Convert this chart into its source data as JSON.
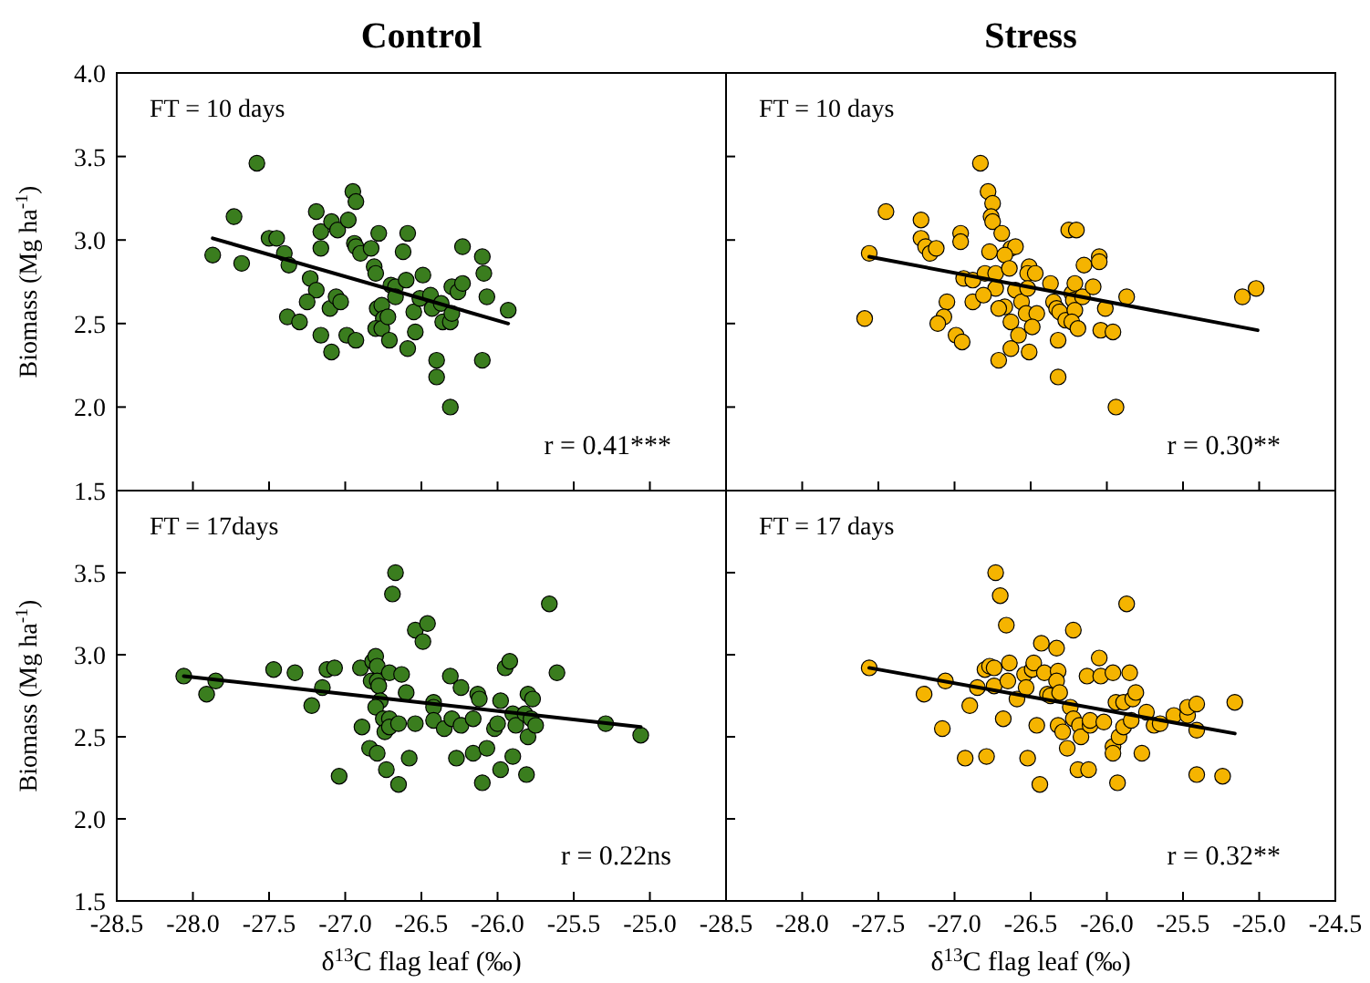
{
  "chart_data": [
    {
      "type": "scatter",
      "title": "Control",
      "ylabel": "Biomass (Mg ha$^{-1}$)",
      "annotations": [
        "FT = 10 days",
        "r = 0.41***"
      ],
      "xlim": [
        -28.5,
        -24.5
      ],
      "xticks": [
        -28.5,
        -28,
        -27.5,
        -27,
        -26.5,
        -26,
        -25.5,
        -25,
        -24.5
      ],
      "ylim": [
        1.5,
        4.0
      ],
      "yticks": [
        1.5,
        {
          "value": 2,
          "label": "2.0"
        },
        2.5,
        {
          "value": 3,
          "label": "3.0"
        },
        3.5,
        {
          "value": 4,
          "label": "4.0"
        }
      ],
      "tick_labels": "y",
      "grid": false,
      "series": [
        {
          "type": "scatter",
          "marker": "circle",
          "color": "#3a7d1e",
          "x": [
            -27.87,
            -27.73,
            -27.68,
            -27.58,
            -27.5,
            -27.45,
            -27.4,
            -27.37,
            -27.38,
            -27.3,
            -27.23,
            -27.19,
            -27.25,
            -27.16,
            -27.19,
            -27.16,
            -27.16,
            -27.09,
            -27.05,
            -27.1,
            -27.06,
            -27.03,
            -27.09,
            -26.99,
            -26.98,
            -26.95,
            -26.93,
            -26.94,
            -26.93,
            -26.9,
            -26.93,
            -26.83,
            -26.78,
            -26.81,
            -26.8,
            -26.79,
            -26.76,
            -26.75,
            -26.8,
            -26.76,
            -26.72,
            -26.71,
            -26.62,
            -26.59,
            -26.7,
            -26.67,
            -26.67,
            -26.6,
            -26.55,
            -26.54,
            -26.59,
            -26.51,
            -26.49,
            -26.44,
            -26.43,
            -26.37,
            -26.4,
            -26.4,
            -26.36,
            -26.31,
            -26.3,
            -26.31,
            -26.3,
            -26.26,
            -26.23,
            -26.23,
            -26.1,
            -26.09,
            -26.07,
            -26.1,
            -25.93
          ],
          "values": [
            2.91,
            3.14,
            2.86,
            3.46,
            3.01,
            3.01,
            2.92,
            2.85,
            2.54,
            2.51,
            2.77,
            2.7,
            2.63,
            2.43,
            3.17,
            3.05,
            2.95,
            3.11,
            3.06,
            2.59,
            2.66,
            2.63,
            2.33,
            2.43,
            3.12,
            3.29,
            3.23,
            2.98,
            2.96,
            2.92,
            2.4,
            2.95,
            3.04,
            2.84,
            2.8,
            2.59,
            2.61,
            2.53,
            2.47,
            2.47,
            2.54,
            2.4,
            2.93,
            3.04,
            2.73,
            2.72,
            2.66,
            2.76,
            2.57,
            2.45,
            2.35,
            2.65,
            2.79,
            2.67,
            2.59,
            2.62,
            2.28,
            2.18,
            2.51,
            2.51,
            2.56,
            2.0,
            2.72,
            2.69,
            2.74,
            2.96,
            2.9,
            2.8,
            2.66,
            2.28,
            2.58
          ]
        },
        {
          "type": "line",
          "marker": "none",
          "color": "#000000",
          "x": [
            -27.87,
            -25.93
          ],
          "values": [
            3.01,
            2.5
          ]
        }
      ]
    },
    {
      "type": "scatter",
      "title": "Stress",
      "annotations": [
        "FT = 10 days",
        "r = 0.30**"
      ],
      "xlim": [
        -28.5,
        -24.5
      ],
      "xticks": [
        -28.5,
        -28,
        -27.5,
        -27,
        -26.5,
        -26,
        -25.5,
        -25,
        -24.5
      ],
      "ylim": [
        1.5,
        4.0
      ],
      "yticks": [
        1.5,
        2,
        2.5,
        3,
        3.5,
        4
      ],
      "tick_labels": false,
      "grid": false,
      "series": [
        {
          "type": "scatter",
          "marker": "circle",
          "color": "#f5b400",
          "x": [
            -27.56,
            -27.59,
            -27.45,
            -27.22,
            -27.22,
            -27.19,
            -27.16,
            -27.12,
            -27.05,
            -27.07,
            -27.11,
            -26.99,
            -26.95,
            -26.96,
            -26.96,
            -26.94,
            -26.88,
            -26.88,
            -26.83,
            -26.78,
            -26.75,
            -26.76,
            -26.75,
            -26.69,
            -26.77,
            -26.8,
            -26.73,
            -26.73,
            -26.81,
            -26.67,
            -26.71,
            -26.71,
            -26.63,
            -26.6,
            -26.67,
            -26.64,
            -26.6,
            -26.56,
            -26.63,
            -26.58,
            -26.63,
            -26.51,
            -26.52,
            -26.47,
            -26.52,
            -26.53,
            -26.46,
            -26.49,
            -26.51,
            -26.37,
            -26.35,
            -26.33,
            -26.31,
            -26.27,
            -26.32,
            -26.32,
            -26.25,
            -26.2,
            -26.23,
            -26.21,
            -26.22,
            -26.16,
            -26.21,
            -26.23,
            -26.19,
            -26.15,
            -26.09,
            -26.05,
            -26.05,
            -26.01,
            -26.04,
            -25.96,
            -25.94,
            -25.87,
            -25.11,
            -25.02
          ],
          "values": [
            2.92,
            2.53,
            3.17,
            3.12,
            3.01,
            2.96,
            2.92,
            2.95,
            2.63,
            2.54,
            2.5,
            2.43,
            2.39,
            3.04,
            2.99,
            2.77,
            2.76,
            2.63,
            3.46,
            3.29,
            3.22,
            3.14,
            3.11,
            3.04,
            2.93,
            2.8,
            2.8,
            2.71,
            2.67,
            2.6,
            2.59,
            2.28,
            2.95,
            2.96,
            2.91,
            2.83,
            2.7,
            2.63,
            2.51,
            2.43,
            2.35,
            2.84,
            2.8,
            2.8,
            2.71,
            2.56,
            2.56,
            2.48,
            2.33,
            2.74,
            2.63,
            2.59,
            2.57,
            2.52,
            2.4,
            2.18,
            3.06,
            3.06,
            2.68,
            2.74,
            2.64,
            2.66,
            2.58,
            2.51,
            2.47,
            2.85,
            2.72,
            2.9,
            2.87,
            2.59,
            2.46,
            2.45,
            2.0,
            2.66,
            2.66,
            2.71
          ]
        },
        {
          "type": "line",
          "marker": "none",
          "color": "#000000",
          "x": [
            -27.56,
            -25.01
          ],
          "values": [
            2.9,
            2.46
          ]
        }
      ]
    },
    {
      "type": "scatter",
      "ylabel": "Biomass (Mg ha$^{-1}$)",
      "xlabel": "δ$^{13}$C flag leaf (‰)",
      "annotations": [
        "FT = 17days",
        "r = 0.22ns"
      ],
      "xlim": [
        -28.5,
        -24.5
      ],
      "xticks": [
        -28.5,
        {
          "value": -28,
          "label": "-28.0"
        },
        -27.5,
        {
          "value": -27,
          "label": "-27.0"
        },
        -26.5,
        {
          "value": -26,
          "label": "-26.0"
        },
        -25.5,
        {
          "value": -25,
          "label": "-25.0"
        },
        {
          "value": -24.5,
          "label": null
        }
      ],
      "ylim": [
        1.5,
        4.0
      ],
      "yticks": [
        1.5,
        {
          "value": 2,
          "label": "2.0"
        },
        2.5,
        {
          "value": 3,
          "label": "3.0"
        },
        3.5,
        {
          "value": 4,
          "label": null
        }
      ],
      "grid": false,
      "series": [
        {
          "type": "scatter",
          "marker": "circle",
          "color": "#3a7d1e",
          "x": [
            -28.06,
            -27.91,
            -27.85,
            -27.47,
            -27.33,
            -27.22,
            -27.15,
            -27.12,
            -27.07,
            -27.04,
            -26.9,
            -26.89,
            -26.84,
            -26.79,
            -26.82,
            -26.8,
            -26.79,
            -26.83,
            -26.79,
            -26.78,
            -26.77,
            -26.8,
            -26.75,
            -26.71,
            -26.74,
            -26.71,
            -26.73,
            -26.71,
            -26.67,
            -26.69,
            -26.65,
            -26.65,
            -26.63,
            -26.6,
            -26.54,
            -26.46,
            -26.49,
            -26.54,
            -26.58,
            -26.42,
            -26.42,
            -26.42,
            -26.35,
            -26.31,
            -26.3,
            -26.27,
            -26.24,
            -26.24,
            -26.16,
            -26.16,
            -26.13,
            -26.12,
            -26.1,
            -26.07,
            -26.02,
            -26.0,
            -25.98,
            -25.98,
            -25.95,
            -25.92,
            -25.9,
            -25.9,
            -25.88,
            -25.82,
            -25.8,
            -25.8,
            -25.78,
            -25.81,
            -25.77,
            -25.75,
            -25.66,
            -25.61,
            -25.29,
            -25.06
          ],
          "values": [
            2.87,
            2.76,
            2.84,
            2.91,
            2.89,
            2.69,
            2.8,
            2.91,
            2.92,
            2.26,
            2.92,
            2.56,
            2.43,
            2.4,
            2.96,
            2.99,
            2.93,
            2.84,
            2.84,
            2.81,
            2.72,
            2.68,
            2.61,
            2.61,
            2.53,
            2.56,
            2.3,
            2.89,
            3.5,
            3.37,
            2.58,
            2.21,
            2.88,
            2.77,
            3.15,
            3.19,
            3.08,
            2.58,
            2.37,
            2.71,
            2.68,
            2.6,
            2.55,
            2.87,
            2.61,
            2.37,
            2.8,
            2.57,
            2.4,
            2.61,
            2.76,
            2.73,
            2.22,
            2.43,
            2.55,
            2.58,
            2.72,
            2.3,
            2.92,
            2.96,
            2.64,
            2.38,
            2.57,
            2.64,
            2.76,
            2.5,
            2.61,
            2.27,
            2.73,
            2.57,
            3.31,
            2.89,
            2.58,
            2.51
          ]
        },
        {
          "type": "line",
          "marker": "none",
          "color": "#000000",
          "x": [
            -28.06,
            -25.06
          ],
          "values": [
            2.87,
            2.56
          ]
        }
      ]
    },
    {
      "type": "scatter",
      "xlabel": "δ$^{13}$C flag leaf (‰)",
      "annotations": [
        "FT = 17 days",
        "r = 0.32**"
      ],
      "xlim": [
        -28.5,
        -24.5
      ],
      "xticks": [
        -28.5,
        {
          "value": -28,
          "label": "-28.0"
        },
        -27.5,
        {
          "value": -27,
          "label": "-27.0"
        },
        -26.5,
        {
          "value": -26,
          "label": "-26.0"
        },
        -25.5,
        {
          "value": -25,
          "label": "-25.0"
        },
        -24.5
      ],
      "ylim": [
        1.5,
        4.0
      ],
      "yticks": [
        1.5,
        2,
        2.5,
        3,
        3.5,
        4
      ],
      "tick_labels": "x",
      "grid": false,
      "series": [
        {
          "type": "scatter",
          "marker": "circle",
          "color": "#f5b400",
          "x": [
            -27.56,
            -27.2,
            -27.08,
            -27.06,
            -26.93,
            -26.9,
            -26.85,
            -26.8,
            -26.77,
            -26.74,
            -26.79,
            -26.74,
            -26.73,
            -26.7,
            -26.68,
            -26.66,
            -26.65,
            -26.64,
            -26.59,
            -26.54,
            -26.53,
            -26.52,
            -26.49,
            -26.48,
            -26.46,
            -26.44,
            -26.43,
            -26.41,
            -26.39,
            -26.37,
            -26.33,
            -26.32,
            -26.33,
            -26.31,
            -26.32,
            -26.29,
            -26.26,
            -26.24,
            -26.22,
            -26.22,
            -26.19,
            -26.18,
            -26.17,
            -26.13,
            -26.12,
            -26.11,
            -26.11,
            -26.05,
            -26.04,
            -26.02,
            -25.96,
            -25.96,
            -25.96,
            -25.94,
            -25.93,
            -25.92,
            -25.89,
            -25.89,
            -25.87,
            -25.85,
            -25.84,
            -25.83,
            -25.81,
            -25.77,
            -25.74,
            -25.69,
            -25.65,
            -25.56,
            -25.47,
            -25.47,
            -25.41,
            -25.41,
            -25.41,
            -25.24,
            -25.16
          ],
          "values": [
            2.92,
            2.76,
            2.55,
            2.84,
            2.37,
            2.69,
            2.8,
            2.91,
            2.93,
            2.92,
            2.38,
            2.81,
            3.5,
            3.36,
            2.61,
            3.18,
            2.84,
            2.95,
            2.73,
            2.88,
            2.8,
            2.37,
            2.91,
            2.95,
            2.57,
            2.21,
            3.07,
            2.89,
            2.76,
            2.75,
            3.04,
            2.9,
            2.84,
            2.77,
            2.57,
            2.53,
            2.43,
            2.68,
            3.15,
            2.61,
            2.3,
            2.57,
            2.5,
            2.87,
            2.3,
            2.57,
            2.6,
            2.98,
            2.87,
            2.59,
            2.89,
            2.44,
            2.4,
            2.71,
            2.22,
            2.5,
            2.56,
            2.71,
            3.31,
            2.89,
            2.6,
            2.73,
            2.77,
            2.4,
            2.65,
            2.57,
            2.58,
            2.63,
            2.63,
            2.68,
            2.7,
            2.54,
            2.27,
            2.26,
            2.71
          ]
        },
        {
          "type": "line",
          "marker": "none",
          "color": "#000000",
          "x": [
            -27.56,
            -25.16
          ],
          "values": [
            2.92,
            2.52
          ]
        }
      ]
    }
  ]
}
